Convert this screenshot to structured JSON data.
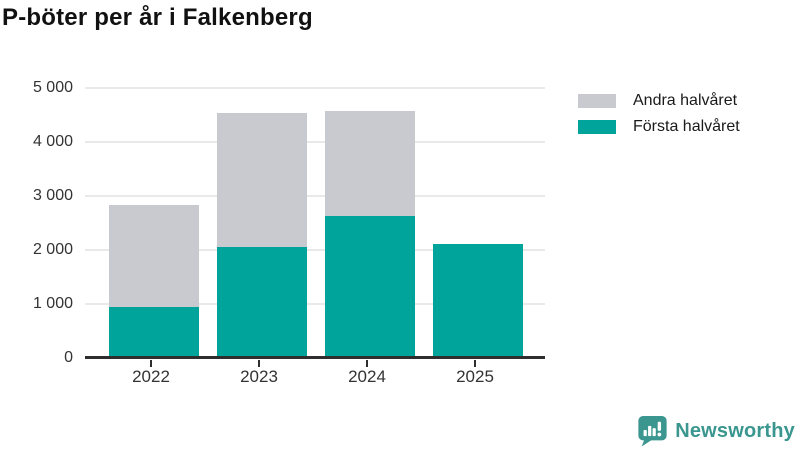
{
  "title": "P-böter per år i Falkenberg",
  "chart_data": {
    "type": "bar",
    "stacked": true,
    "title": "P-böter per år i Falkenberg",
    "categories": [
      "2022",
      "2023",
      "2024",
      "2025"
    ],
    "series": [
      {
        "name": "Första halvåret",
        "color": "#00A49B",
        "values": [
          940,
          2060,
          2630,
          2110
        ]
      },
      {
        "name": "Andra halvåret",
        "color": "#C9C9D0",
        "values": [
          1900,
          2470,
          1950,
          0
        ]
      }
    ],
    "stacked_totals": [
      2840,
      4530,
      4580,
      2110
    ],
    "ylim": [
      0,
      5000
    ],
    "ytick_values": [
      0,
      1000,
      2000,
      3000,
      4000,
      5000
    ],
    "ytick_labels": [
      "0",
      "1 000",
      "2 000",
      "3 000",
      "4 000",
      "5 000"
    ],
    "xlabel": "",
    "ylabel": "",
    "grid": "horizontal",
    "legend_position": "top-right",
    "legend_order_top_to_bottom": [
      "Andra halvåret",
      "Första halvåret"
    ]
  },
  "legend": {
    "items": [
      {
        "label": "Andra halvåret",
        "color": "#C9C9D0"
      },
      {
        "label": "Första halvåret",
        "color": "#00A49B"
      }
    ]
  },
  "footer": {
    "brand": "Newsworthy",
    "logo_icon": "bar-chart-speech-bubble-icon",
    "brand_color": "#3A968E"
  },
  "colors": {
    "first_half": "#00A49B",
    "second_half": "#C9C9D0",
    "grid": "#E9E9E9",
    "axis": "#2E2E2E",
    "tick_text": "#333333",
    "title_text": "#111111"
  }
}
